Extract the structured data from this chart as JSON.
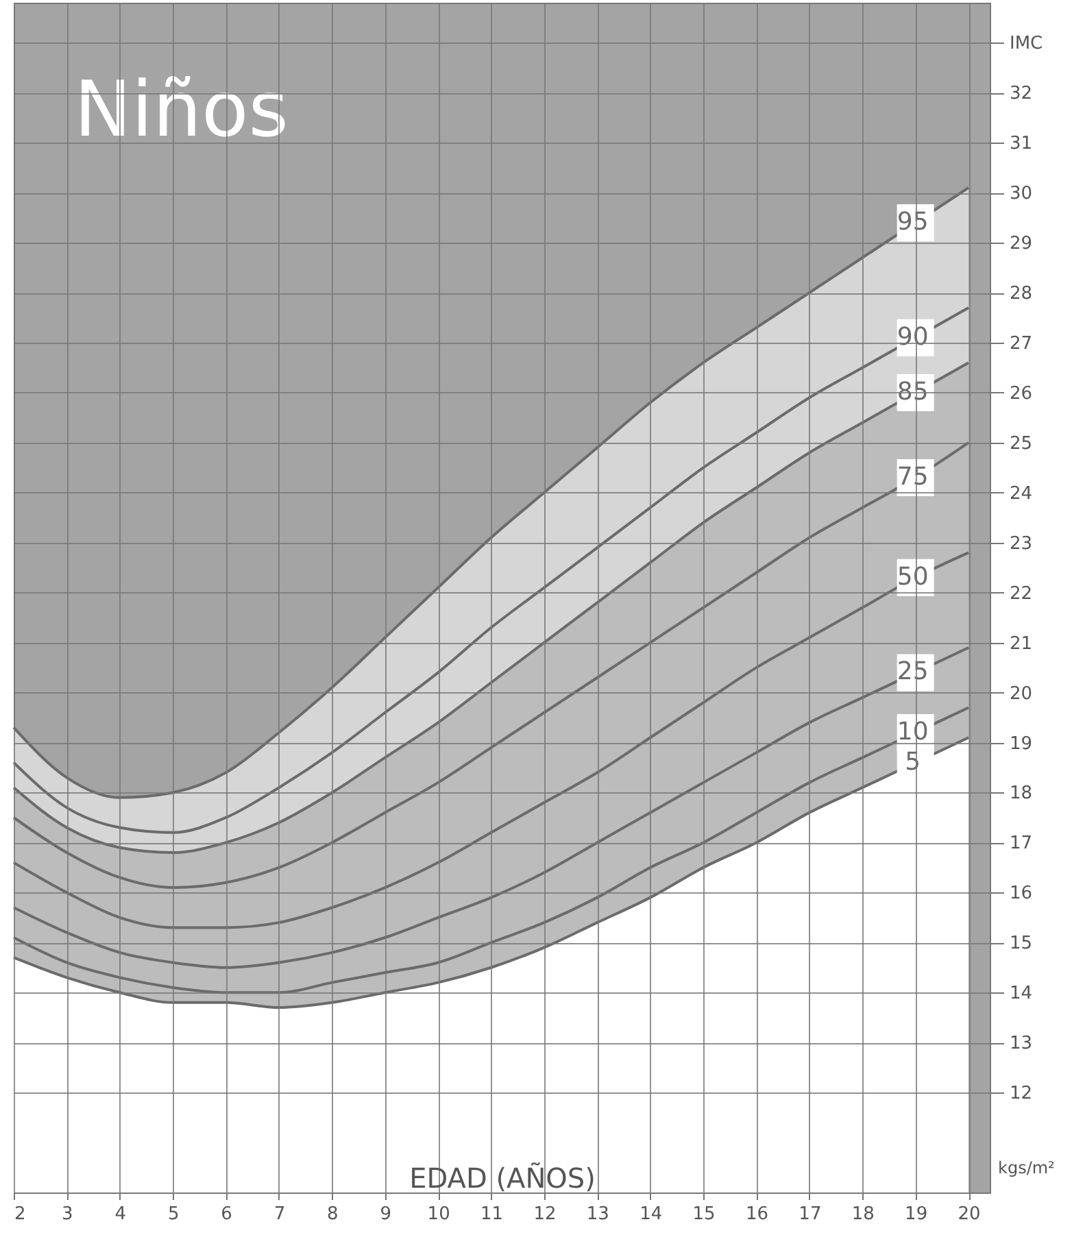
{
  "chart_data": {
    "type": "line",
    "title": "Niños",
    "xlabel": "EDAD (AÑOS)",
    "annotations": [
      "kgs/m²"
    ],
    "x": [
      2,
      3,
      4,
      5,
      6,
      7,
      8,
      9,
      10,
      11,
      12,
      13,
      14,
      15,
      16,
      17,
      18,
      19,
      20
    ],
    "series": [
      {
        "name": "5",
        "color": "#6b6b6b",
        "values": [
          14.7,
          14.3,
          14.0,
          13.8,
          13.8,
          13.7,
          13.8,
          14.0,
          14.2,
          14.5,
          14.9,
          15.4,
          15.9,
          16.5,
          17.0,
          17.6,
          18.1,
          18.6,
          19.1
        ]
      },
      {
        "name": "10",
        "color": "#6b6b6b",
        "values": [
          15.1,
          14.6,
          14.3,
          14.1,
          14.0,
          14.0,
          14.2,
          14.4,
          14.6,
          15.0,
          15.4,
          15.9,
          16.5,
          17.0,
          17.6,
          18.2,
          18.7,
          19.2,
          19.7
        ]
      },
      {
        "name": "25",
        "color": "#6b6b6b",
        "values": [
          15.7,
          15.2,
          14.8,
          14.6,
          14.5,
          14.6,
          14.8,
          15.1,
          15.5,
          15.9,
          16.4,
          17.0,
          17.6,
          18.2,
          18.8,
          19.4,
          19.9,
          20.4,
          20.9
        ]
      },
      {
        "name": "50",
        "color": "#6b6b6b",
        "values": [
          16.6,
          16.0,
          15.5,
          15.3,
          15.3,
          15.4,
          15.7,
          16.1,
          16.6,
          17.2,
          17.8,
          18.4,
          19.1,
          19.8,
          20.5,
          21.1,
          21.7,
          22.3,
          22.8
        ],
        "lower": [
          14.7,
          14.3,
          14.0,
          13.8,
          13.8,
          13.7,
          13.8,
          14.0,
          14.2,
          14.5,
          14.9,
          15.4,
          15.9,
          16.5,
          17.0,
          17.6,
          18.1,
          18.6,
          19.1
        ],
        "upper": [
          18.1,
          17.3,
          16.9,
          16.8,
          17.0,
          17.4,
          18.0,
          18.7,
          19.4,
          20.2,
          21.0,
          21.8,
          22.6,
          23.4,
          24.1,
          24.8,
          25.4,
          26.0,
          26.6
        ]
      },
      {
        "name": "75",
        "color": "#6b6b6b",
        "values": [
          17.5,
          16.8,
          16.3,
          16.1,
          16.2,
          16.5,
          17.0,
          17.6,
          18.2,
          18.9,
          19.6,
          20.3,
          21.0,
          21.7,
          22.4,
          23.1,
          23.7,
          24.3,
          25.0
        ]
      },
      {
        "name": "85",
        "color": "#6b6b6b",
        "values": [
          18.1,
          17.3,
          16.9,
          16.8,
          17.0,
          17.4,
          18.0,
          18.7,
          19.4,
          20.2,
          21.0,
          21.8,
          22.6,
          23.4,
          24.1,
          24.8,
          25.4,
          26.0,
          26.6
        ]
      },
      {
        "name": "90",
        "color": "#6b6b6b",
        "values": [
          18.6,
          17.7,
          17.3,
          17.2,
          17.5,
          18.1,
          18.8,
          19.6,
          20.4,
          21.3,
          22.1,
          22.9,
          23.7,
          24.5,
          25.2,
          25.9,
          26.5,
          27.1,
          27.7
        ],
        "lower": [
          18.1,
          17.3,
          16.9,
          16.8,
          17.0,
          17.4,
          18.0,
          18.7,
          19.4,
          20.2,
          21.0,
          21.8,
          22.6,
          23.4,
          24.1,
          24.8,
          25.4,
          26.0,
          26.6
        ],
        "upper": [
          19.3,
          18.3,
          17.9,
          18.0,
          18.4,
          19.2,
          20.1,
          21.1,
          22.1,
          23.1,
          24.0,
          24.9,
          25.8,
          26.6,
          27.3,
          28.0,
          28.7,
          29.4,
          30.1
        ]
      },
      {
        "name": "95",
        "color": "#6b6b6b",
        "values": [
          19.3,
          18.3,
          17.9,
          18.0,
          18.4,
          19.2,
          20.1,
          21.1,
          22.1,
          23.1,
          24.0,
          24.9,
          25.8,
          26.6,
          27.3,
          28.0,
          28.7,
          29.4,
          30.1
        ]
      }
    ],
    "xlim": [
      2,
      20.4
    ],
    "xticks": [
      2,
      3,
      4,
      5,
      6,
      7,
      8,
      9,
      10,
      11,
      12,
      13,
      14,
      15,
      16,
      17,
      18,
      19,
      20
    ],
    "ylim": [
      10,
      33.8
    ],
    "yticks": [
      12,
      13,
      14,
      15,
      16,
      17,
      18,
      19,
      20,
      21,
      22,
      23,
      24,
      25,
      26,
      27,
      28,
      29,
      30,
      31,
      32,
      {
        "value": 33,
        "label": "IMC"
      }
    ],
    "grid": true,
    "marker": "none",
    "line_style": "solid"
  }
}
